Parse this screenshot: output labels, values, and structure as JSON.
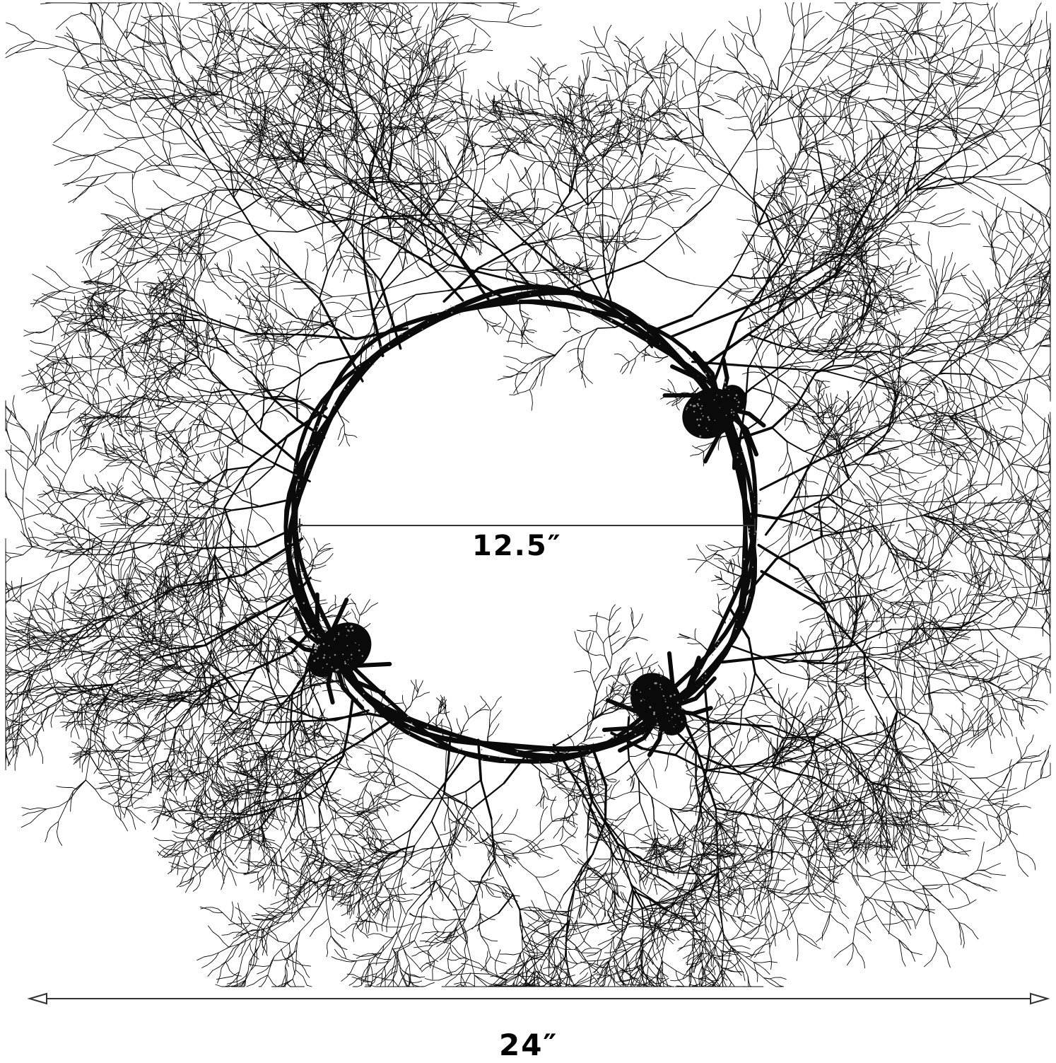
{
  "image": {
    "subject": "black-branch-wreath-with-spiders",
    "background_color": "#ffffff",
    "wreath_color": "#0a0a0a",
    "glitter_color": "#8a8a8a",
    "dimension_line_color": "#333333"
  },
  "dimensions": {
    "inner_diameter": "12.5″",
    "outer_diameter": "24″"
  },
  "spiders": {
    "count": 3
  }
}
